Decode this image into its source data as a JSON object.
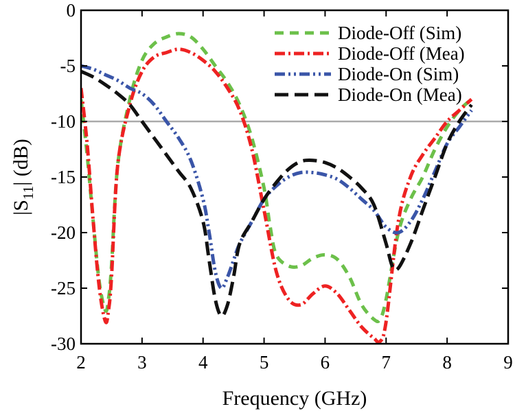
{
  "chart_data": {
    "type": "line",
    "title": "",
    "xlabel": "Frequency (GHz)",
    "ylabel": "|S11| (dB)",
    "ylabel_main": "|S",
    "ylabel_sub": "11",
    "ylabel_rest": "| (dB)",
    "xlim": [
      2,
      9
    ],
    "ylim": [
      -30,
      0
    ],
    "xticks": [
      2,
      3,
      4,
      5,
      6,
      7,
      8,
      9
    ],
    "yticks": [
      0,
      -5,
      -10,
      -15,
      -20,
      -25,
      -30
    ],
    "xtick_labels": [
      "2",
      "3",
      "4",
      "5",
      "6",
      "7",
      "8",
      "9"
    ],
    "ytick_labels": [
      "0",
      "-5",
      "-10",
      "-15",
      "-20",
      "-25",
      "-30"
    ],
    "grid": false,
    "legend_position": "top-right",
    "reference_line": {
      "y": -10,
      "color": "#aaaaaa"
    },
    "series": [
      {
        "name": "Diode-Off (Sim)",
        "color": "#6cc04a",
        "dash": "13,9",
        "x": [
          2.0,
          2.1,
          2.2,
          2.3,
          2.4,
          2.45,
          2.5,
          2.6,
          2.8,
          3.0,
          3.2,
          3.4,
          3.6,
          3.8,
          4.0,
          4.2,
          4.4,
          4.6,
          4.8,
          5.0,
          5.1,
          5.2,
          5.4,
          5.6,
          5.8,
          6.0,
          6.2,
          6.4,
          6.6,
          6.8,
          6.9,
          7.0,
          7.2,
          7.4,
          7.6,
          7.8,
          8.0,
          8.2,
          8.4
        ],
        "y": [
          -8.0,
          -13.0,
          -19.0,
          -24.5,
          -27.0,
          -26.0,
          -23.0,
          -14.0,
          -8.0,
          -4.5,
          -3.0,
          -2.4,
          -2.1,
          -2.4,
          -3.5,
          -5.0,
          -6.5,
          -8.5,
          -11.5,
          -16.0,
          -19.5,
          -22.0,
          -23.0,
          -23.0,
          -22.3,
          -22.0,
          -22.4,
          -24.0,
          -26.5,
          -27.8,
          -27.8,
          -26.0,
          -20.0,
          -17.0,
          -15.0,
          -12.5,
          -10.5,
          -9.0,
          -8.0
        ]
      },
      {
        "name": "Diode-Off (Mea)",
        "color": "#ee2222",
        "dash": "15,5,3,5",
        "x": [
          2.0,
          2.1,
          2.2,
          2.3,
          2.4,
          2.45,
          2.5,
          2.6,
          2.8,
          3.0,
          3.2,
          3.4,
          3.6,
          3.8,
          4.0,
          4.2,
          4.4,
          4.6,
          4.8,
          5.0,
          5.2,
          5.4,
          5.6,
          5.8,
          6.0,
          6.2,
          6.4,
          6.6,
          6.8,
          6.9,
          7.0,
          7.2,
          7.4,
          7.6,
          7.8,
          8.0,
          8.2,
          8.4
        ],
        "y": [
          -7.0,
          -12.0,
          -19.0,
          -25.0,
          -28.0,
          -27.0,
          -24.0,
          -14.0,
          -8.5,
          -5.5,
          -4.2,
          -3.8,
          -3.5,
          -3.8,
          -4.5,
          -5.5,
          -7.0,
          -9.0,
          -12.5,
          -18.0,
          -23.5,
          -26.0,
          -26.5,
          -25.5,
          -24.8,
          -25.5,
          -27.0,
          -28.5,
          -29.5,
          -29.8,
          -28.0,
          -19.0,
          -15.0,
          -13.0,
          -11.5,
          -10.0,
          -9.0,
          -8.0
        ]
      },
      {
        "name": "Diode-On (Sim)",
        "color": "#3a55a8",
        "dash": "15,5,3,5,3,5",
        "x": [
          2.0,
          2.2,
          2.4,
          2.6,
          2.8,
          3.0,
          3.2,
          3.4,
          3.6,
          3.8,
          4.0,
          4.1,
          4.2,
          4.3,
          4.4,
          4.5,
          4.6,
          4.8,
          5.0,
          5.2,
          5.4,
          5.6,
          5.8,
          6.0,
          6.2,
          6.4,
          6.6,
          6.8,
          7.0,
          7.2,
          7.4,
          7.6,
          7.8,
          8.0,
          8.2,
          8.4
        ],
        "y": [
          -5.0,
          -5.3,
          -5.8,
          -6.3,
          -7.0,
          -7.5,
          -8.5,
          -10.0,
          -11.5,
          -13.5,
          -17.0,
          -20.0,
          -23.5,
          -25.0,
          -24.0,
          -22.5,
          -21.0,
          -19.0,
          -17.0,
          -15.8,
          -15.0,
          -14.6,
          -14.6,
          -14.8,
          -15.2,
          -16.0,
          -17.0,
          -18.0,
          -19.5,
          -20.0,
          -19.0,
          -17.0,
          -14.5,
          -12.0,
          -10.5,
          -9.0
        ]
      },
      {
        "name": "Diode-On (Mea)",
        "color": "#111111",
        "dash": "20,9",
        "x": [
          2.0,
          2.2,
          2.4,
          2.6,
          2.8,
          3.0,
          3.2,
          3.4,
          3.6,
          3.8,
          4.0,
          4.1,
          4.2,
          4.3,
          4.4,
          4.5,
          4.6,
          4.8,
          5.0,
          5.2,
          5.4,
          5.6,
          5.8,
          6.0,
          6.2,
          6.4,
          6.6,
          6.8,
          7.0,
          7.1,
          7.2,
          7.4,
          7.6,
          7.8,
          8.0,
          8.2,
          8.4
        ],
        "y": [
          -5.5,
          -6.0,
          -6.7,
          -7.5,
          -8.5,
          -10.0,
          -11.5,
          -13.0,
          -14.5,
          -16.0,
          -19.0,
          -22.5,
          -26.0,
          -27.5,
          -26.5,
          -24.0,
          -21.0,
          -19.0,
          -17.0,
          -15.5,
          -14.3,
          -13.6,
          -13.5,
          -13.7,
          -14.2,
          -15.0,
          -16.0,
          -17.5,
          -21.0,
          -23.0,
          -23.2,
          -21.0,
          -18.0,
          -15.0,
          -12.0,
          -10.0,
          -8.5
        ]
      }
    ]
  }
}
